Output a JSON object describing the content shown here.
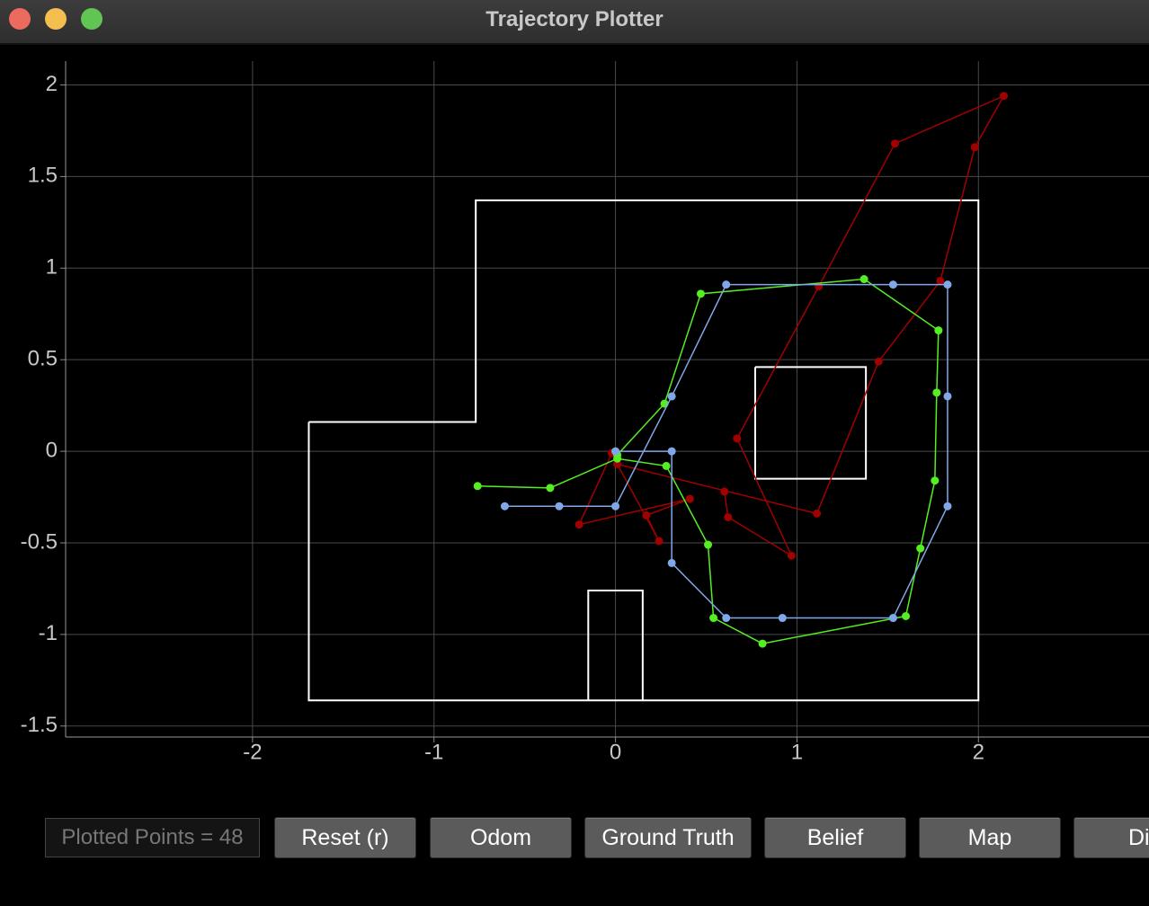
{
  "window": {
    "title": "Trajectory Plotter"
  },
  "chart_data": {
    "type": "line",
    "xlim": [
      -3.03,
      2.94
    ],
    "ylim": [
      -1.56,
      2.13
    ],
    "xticks": [
      -2,
      -1,
      0,
      1,
      2
    ],
    "yticks": [
      -1.5,
      -1,
      -0.5,
      0,
      0.5,
      1,
      1.5,
      2
    ],
    "grid": true,
    "series": [
      {
        "color": "#ffffff",
        "markers": false,
        "x": [
          -1.69,
          -0.77,
          -0.77,
          2.0,
          2.0,
          -1.69,
          -1.69
        ],
        "values": [
          0.16,
          0.16,
          1.37,
          1.37,
          -1.36,
          -1.36,
          0.16
        ]
      },
      {
        "color": "#ffffff",
        "markers": false,
        "x": [
          0.77,
          1.38,
          1.38,
          0.77,
          0.77
        ],
        "values": [
          0.46,
          0.46,
          -0.15,
          -0.15,
          0.46
        ]
      },
      {
        "color": "#ffffff",
        "markers": false,
        "x": [
          -0.15,
          -0.15,
          0.15,
          0.15
        ],
        "values": [
          -1.36,
          -0.76,
          -0.76,
          -1.36
        ]
      },
      {
        "color": "#a00000",
        "markers": true,
        "x": [
          -0.02,
          -0.2,
          0.41,
          0.17,
          0.24,
          0.01,
          1.11,
          1.45,
          1.79,
          1.98,
          2.14,
          1.54,
          1.12,
          0.67,
          0.97,
          0.62,
          0.6
        ],
        "values": [
          -0.01,
          -0.4,
          -0.26,
          -0.35,
          -0.49,
          -0.07,
          -0.34,
          0.49,
          0.93,
          1.66,
          1.94,
          1.68,
          0.9,
          0.07,
          -0.57,
          -0.36,
          -0.22
        ]
      },
      {
        "color": "#55ee22",
        "markers": true,
        "x": [
          -0.76,
          -0.36,
          0.01,
          0.28,
          0.51,
          0.54,
          0.81,
          1.6,
          1.68,
          1.76,
          1.77,
          1.78,
          1.37,
          0.47,
          0.27,
          0.01
        ],
        "values": [
          -0.19,
          -0.2,
          -0.04,
          -0.08,
          -0.51,
          -0.91,
          -1.05,
          -0.9,
          -0.53,
          -0.16,
          0.32,
          0.66,
          0.94,
          0.86,
          0.26,
          -0.02
        ]
      },
      {
        "color": "#80a8e8",
        "markers": true,
        "x": [
          -0.61,
          -0.31,
          0,
          0.31,
          0.61,
          1.53,
          1.83,
          1.83,
          1.83,
          1.53,
          0.92,
          0.61,
          0.31,
          0.31,
          0
        ],
        "values": [
          -0.3,
          -0.3,
          -0.3,
          0.3,
          0.91,
          0.91,
          0.91,
          0.3,
          -0.3,
          -0.91,
          -0.91,
          -0.91,
          -0.61,
          0,
          0
        ]
      }
    ]
  },
  "controls": {
    "points_label": "Plotted Points = 48",
    "buttons": [
      "Reset (r)",
      "Odom",
      "Ground Truth",
      "Belief",
      "Map",
      "Dis"
    ]
  }
}
